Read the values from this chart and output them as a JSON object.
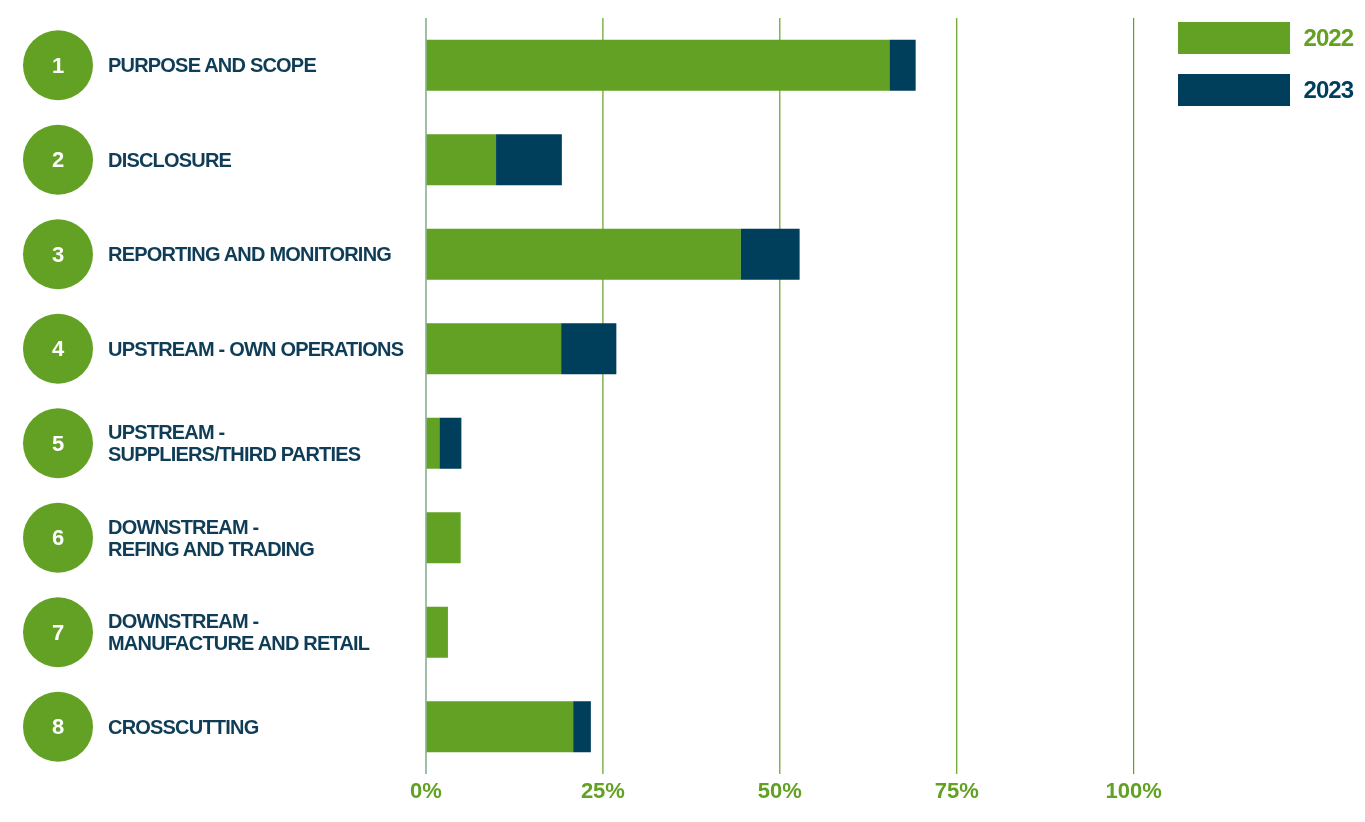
{
  "chart_data": {
    "type": "bar",
    "orientation": "horizontal",
    "stacked": true,
    "categories": [
      "1 PURPOSE AND SCOPE",
      "2 DISCLOSURE",
      "3 REPORTING AND MONITORING",
      "4 UPSTREAM - OWN OPERATIONS",
      "5 UPSTREAM -\nSUPPLIERS/THIRD PARTIES",
      "6 DOWNSTREAM -\nREFING AND TRADING",
      "7 DOWNSTREAM -\nMANUFACTURE AND RETAIL",
      "8 CROSSCUTTING"
    ],
    "series": [
      {
        "name": "2022",
        "color": "#62a123",
        "values": [
          65.5,
          9.9,
          44.5,
          19.1,
          1.9,
          4.9,
          3.1,
          20.8
        ]
      },
      {
        "name": "2023",
        "color": "#003f5c",
        "values": [
          3.7,
          9.3,
          8.3,
          7.8,
          3.1,
          null,
          null,
          2.5
        ]
      }
    ],
    "xlim": [
      0,
      100
    ],
    "xticks": [
      {
        "value": 0,
        "label": "0%"
      },
      {
        "value": 25,
        "label": "25%"
      },
      {
        "value": 50,
        "label": "50%"
      },
      {
        "value": 75,
        "label": "75%"
      },
      {
        "value": 100,
        "label": "100%"
      }
    ],
    "grid": "x",
    "legend": "top right"
  }
}
